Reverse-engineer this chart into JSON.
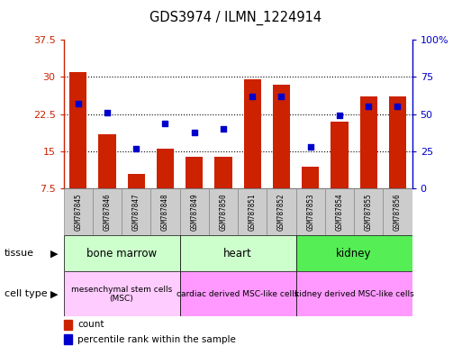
{
  "title": "GDS3974 / ILMN_1224914",
  "samples": [
    "GSM787845",
    "GSM787846",
    "GSM787847",
    "GSM787848",
    "GSM787849",
    "GSM787850",
    "GSM787851",
    "GSM787852",
    "GSM787853",
    "GSM787854",
    "GSM787855",
    "GSM787856"
  ],
  "bar_values": [
    31.0,
    18.5,
    10.5,
    15.5,
    14.0,
    14.0,
    29.5,
    28.5,
    12.0,
    21.0,
    26.0,
    26.0
  ],
  "dot_values": [
    57,
    51,
    27,
    44,
    38,
    40,
    62,
    62,
    28,
    49,
    55,
    55
  ],
  "ylim_left": [
    7.5,
    37.5
  ],
  "ylim_right": [
    0,
    100
  ],
  "yticks_left": [
    7.5,
    15.0,
    22.5,
    30.0,
    37.5
  ],
  "yticks_right": [
    0,
    25,
    50,
    75,
    100
  ],
  "ytick_labels_left": [
    "7.5",
    "15",
    "22.5",
    "30",
    "37.5"
  ],
  "ytick_labels_right": [
    "0",
    "25",
    "50",
    "75",
    "100%"
  ],
  "bar_color": "#cc2200",
  "dot_color": "#0000cc",
  "bar_bottom": 7.5,
  "tissue_groups": [
    {
      "label": "bone marrow",
      "start": 0,
      "end": 4,
      "color": "#ccffcc"
    },
    {
      "label": "heart",
      "start": 4,
      "end": 8,
      "color": "#ccffcc"
    },
    {
      "label": "kidney",
      "start": 8,
      "end": 12,
      "color": "#55ee55"
    }
  ],
  "celltype_groups": [
    {
      "label": "mesenchymal stem cells\n(MSC)",
      "start": 0,
      "end": 4,
      "color": "#ffccff"
    },
    {
      "label": "cardiac derived MSC-like cells",
      "start": 4,
      "end": 8,
      "color": "#ff99ff"
    },
    {
      "label": "kidney derived MSC-like cells",
      "start": 8,
      "end": 12,
      "color": "#ff99ff"
    }
  ],
  "legend_count_label": "count",
  "legend_pct_label": "percentile rank within the sample",
  "xlabel_tissue": "tissue",
  "xlabel_celltype": "cell type",
  "sample_box_color": "#cccccc",
  "grid_color": "#000000",
  "grid_style": "dotted"
}
